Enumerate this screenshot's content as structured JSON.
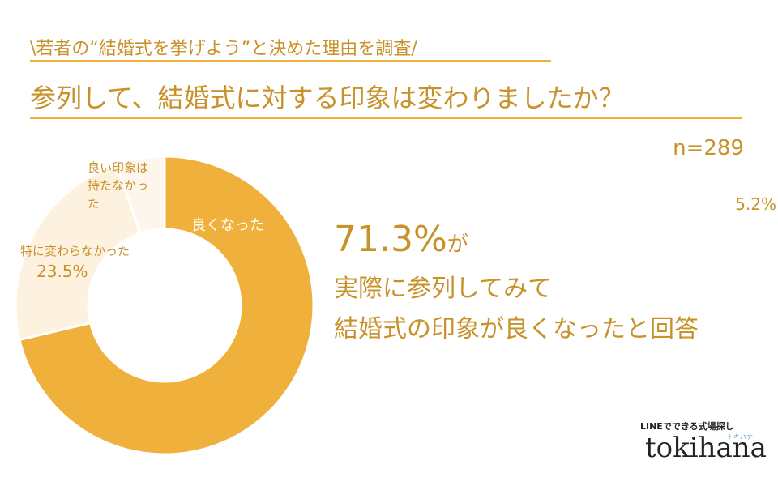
{
  "header": {
    "subtitle": "\\若者の“結婚式を挙げよう”と決めた理由を調査/",
    "title": "参列して、結婚式に対する印象は変わりましたか？",
    "sample": "n=289"
  },
  "chart_data": {
    "type": "pie",
    "donut": true,
    "categories": [
      "良くなった",
      "特に変わらなかった",
      "良い印象は持たなかった"
    ],
    "values": [
      71.3,
      23.5,
      5.2
    ],
    "value_labels": [
      "71.3%",
      "23.5%",
      "5.2%"
    ],
    "colors": [
      "#f0b03c",
      "#fdf2e0",
      "#fdf6ec"
    ]
  },
  "callout": {
    "highlight": "71.3%",
    "suffix": "が",
    "lines": [
      "実際に参列してみて",
      "結婚式の印象が良くなったと回答"
    ]
  },
  "logo": {
    "tagline": "LINEでできる式場探し",
    "name": "tokihana",
    "kana": "トキハナ"
  }
}
